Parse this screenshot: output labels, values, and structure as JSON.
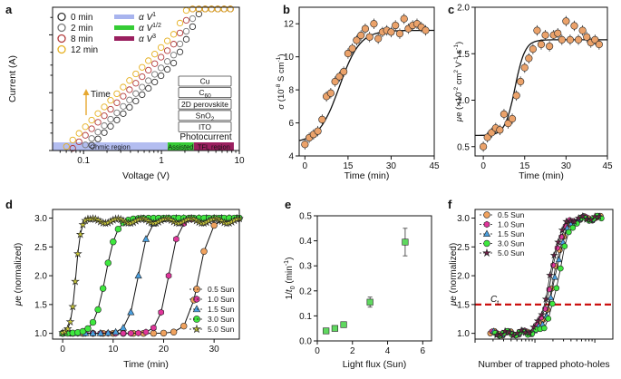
{
  "chart_data": [
    {
      "panel": "a",
      "type": "scatter",
      "xlabel": "Voltage (V)",
      "ylabel": "Current (A)",
      "xscale": "log",
      "yscale": "log",
      "xlim": [
        0.04,
        10
      ],
      "ylim": [
        0.0001,
        0.03
      ],
      "xticks": [
        "0.1",
        "1",
        "10"
      ],
      "yticks": [
        "10^-4",
        "10^-3",
        "10^-2"
      ],
      "legend_placement": "top-left",
      "series": [
        {
          "name": "0 min",
          "color": "#333333",
          "I0": 3.5e-05
        },
        {
          "name": "2 min",
          "color": "#777777",
          "I0": 4.5e-05
        },
        {
          "name": "8 min",
          "color": "#b23a3a",
          "I0": 6.5e-05
        },
        {
          "name": "12 min",
          "color": "#e6b020",
          "I0": 9e-05
        }
      ],
      "fit_lines": [
        {
          "label": "α V^1",
          "color": "#a8b4ee"
        },
        {
          "label": "α V^1/2",
          "color": "#35cc35"
        },
        {
          "label": "α V^3",
          "color": "#9a1f5f"
        }
      ],
      "arrow_label": "Time",
      "device_stack": [
        "Cu",
        "C60",
        "2D perovskite",
        "SnO2",
        "ITO"
      ],
      "annotation": "Photocurrent",
      "regions": [
        {
          "label": "Ohmic region",
          "from": 0.04,
          "to": 1.2,
          "color": "#b3bdf0"
        },
        {
          "label": "Assisted",
          "from": 1.2,
          "to": 2.6,
          "color": "#36cc36"
        },
        {
          "label": "TFL region",
          "from": 2.6,
          "to": 8.5,
          "color": "#9a1f5f"
        }
      ]
    },
    {
      "panel": "b",
      "type": "scatter",
      "xlabel": "Time (min)",
      "ylabel": "σ (10^-8 S cm^-1)",
      "xlim": [
        -2,
        45
      ],
      "ylim": [
        4,
        13
      ],
      "xticks": [
        0,
        15,
        30,
        45
      ],
      "yticks": [
        4,
        6,
        8,
        10,
        12
      ],
      "x": [
        0,
        1.5,
        3,
        4.5,
        6,
        7.5,
        9,
        10.5,
        12,
        13.5,
        15,
        16.5,
        18,
        19.5,
        21,
        22.5,
        24,
        25.5,
        27,
        28.5,
        30,
        31.5,
        33,
        34.5,
        36,
        37.5,
        39,
        40.5,
        42
      ],
      "y": [
        4.7,
        5.1,
        5.3,
        5.5,
        6.2,
        7.6,
        7.8,
        8.5,
        8.8,
        9.1,
        10.2,
        10.5,
        11.0,
        11.3,
        11.7,
        11.2,
        12.0,
        11.1,
        11.5,
        11.6,
        11.5,
        11.9,
        11.4,
        12.3,
        11.7,
        11.9,
        12.0,
        11.8,
        11.6
      ],
      "fit": {
        "y0": 4.8,
        "y1": 11.6,
        "x0": 12,
        "k": 0.28
      }
    },
    {
      "panel": "c",
      "type": "scatter",
      "xlabel": "Time (min)",
      "ylabel": "μe (×10^-2 cm^2 V^-1 s^-1)",
      "xlim": [
        -3,
        45
      ],
      "ylim": [
        0.4,
        2.0
      ],
      "xticks": [
        0,
        15,
        30,
        45
      ],
      "yticks": [
        0.5,
        1.0,
        1.5,
        2.0
      ],
      "x": [
        0,
        1.5,
        3,
        4.5,
        6,
        7.5,
        9,
        10.5,
        12,
        13.5,
        15,
        16.5,
        18,
        19.5,
        21,
        22.5,
        24,
        25.5,
        27,
        28.5,
        30,
        31.5,
        33,
        34.5,
        36,
        37.5,
        39,
        40.5,
        42
      ],
      "y": [
        0.5,
        0.6,
        0.65,
        0.7,
        0.68,
        0.85,
        0.75,
        0.8,
        1.05,
        1.2,
        1.35,
        1.45,
        1.55,
        1.75,
        1.6,
        1.7,
        1.58,
        1.7,
        1.72,
        1.65,
        1.85,
        1.65,
        1.8,
        1.65,
        1.75,
        1.68,
        1.62,
        1.65,
        1.6
      ],
      "fit": {
        "y0": 0.62,
        "y1": 1.65,
        "x0": 11.5,
        "k": 0.55
      }
    },
    {
      "panel": "d",
      "type": "line",
      "xlabel": "Time (min)",
      "ylabel": "μe (normalized)",
      "xlim": [
        -2,
        35
      ],
      "ylim": [
        0.9,
        3.15
      ],
      "xticks": [
        0,
        10,
        20,
        30
      ],
      "yticks": [
        1.0,
        1.5,
        2.0,
        2.5,
        3.0
      ],
      "legend_placement": "bottom-right",
      "series": [
        {
          "name": "0.5 Sun",
          "color": "#f0a25e",
          "shape": "circle",
          "x0": 27,
          "k": 0.9
        },
        {
          "name": "1.0 Sun",
          "color": "#e0359a",
          "shape": "hexagon",
          "x0": 21,
          "k": 1.0
        },
        {
          "name": "1.5 Sun",
          "color": "#4aa0e0",
          "shape": "triangle",
          "x0": 15,
          "k": 1.0
        },
        {
          "name": "3.0 Sun",
          "color": "#3ee83e",
          "shape": "circle",
          "x0": 8.5,
          "k": 0.9
        },
        {
          "name": "5.0 Sun",
          "color": "#c9c73a",
          "shape": "star",
          "x0": 2.6,
          "k": 2.0
        }
      ]
    },
    {
      "panel": "e",
      "type": "scatter",
      "xlabel": "Light flux (Sun)",
      "ylabel": "1/t0 (min^-1)",
      "xlim": [
        0,
        6.5
      ],
      "ylim": [
        0,
        0.5
      ],
      "xticks": [
        0,
        2,
        4,
        6
      ],
      "yticks": [
        0.0,
        0.1,
        0.2,
        0.3,
        0.4,
        0.5
      ],
      "color": "#5fd85f",
      "x": [
        0.5,
        1.0,
        1.5,
        3.0,
        5.0
      ],
      "y": [
        0.04,
        0.05,
        0.065,
        0.155,
        0.395
      ],
      "err": [
        0.005,
        0.005,
        0.008,
        0.02,
        0.055
      ]
    },
    {
      "panel": "f",
      "type": "scatter",
      "xlabel": "Number of trapped photo-holes",
      "ylabel": "μe (normalized)",
      "xscale": "log",
      "xlim": [
        1000000,
        200000000
      ],
      "ylim": [
        0.9,
        3.15
      ],
      "xticks": [
        "10^6",
        "10^7",
        "10^8"
      ],
      "yticks": [
        1.0,
        1.5,
        2.0,
        2.5,
        3.0
      ],
      "legend_placement": "top-left",
      "threshold_label": "Ct",
      "threshold_value": 1.5,
      "threshold_color": "#cc1111",
      "series": [
        {
          "name": "0.5 Sun",
          "color": "#f0a25e",
          "shape": "circle",
          "x0": 21000000
        },
        {
          "name": "1.0 Sun",
          "color": "#e0359a",
          "shape": "hexagon",
          "x0": 19000000
        },
        {
          "name": "1.5 Sun",
          "color": "#4aa0e0",
          "shape": "triangle",
          "x0": 22000000
        },
        {
          "name": "3.0 Sun",
          "color": "#3ee83e",
          "shape": "circle",
          "x0": 25000000
        },
        {
          "name": "5.0 Sun",
          "color": "#6b1f45",
          "shape": "star",
          "x0": 18000000
        }
      ]
    }
  ],
  "panel_letters": [
    "a",
    "b",
    "c",
    "d",
    "e",
    "f"
  ]
}
